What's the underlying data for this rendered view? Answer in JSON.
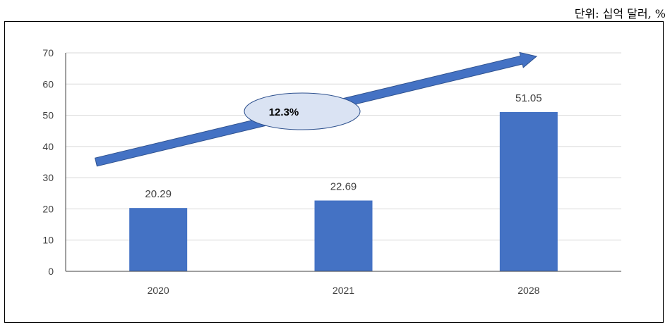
{
  "unit_text": "단위: 십억 달러, %",
  "chart_data": {
    "type": "bar",
    "categories": [
      "2020",
      "2021",
      "2028"
    ],
    "values": [
      20.29,
      22.69,
      51.05
    ],
    "data_labels": [
      "20.29",
      "22.69",
      "51.05"
    ],
    "ylim": [
      0,
      70
    ],
    "yticks": [
      0,
      10,
      20,
      30,
      40,
      50,
      60,
      70
    ],
    "grid": true,
    "bar_color": "#4472C4",
    "annotation": {
      "text": "12.3%",
      "arrow_color": "#4472C4",
      "ellipse_fill": "#DAE3F3"
    }
  }
}
